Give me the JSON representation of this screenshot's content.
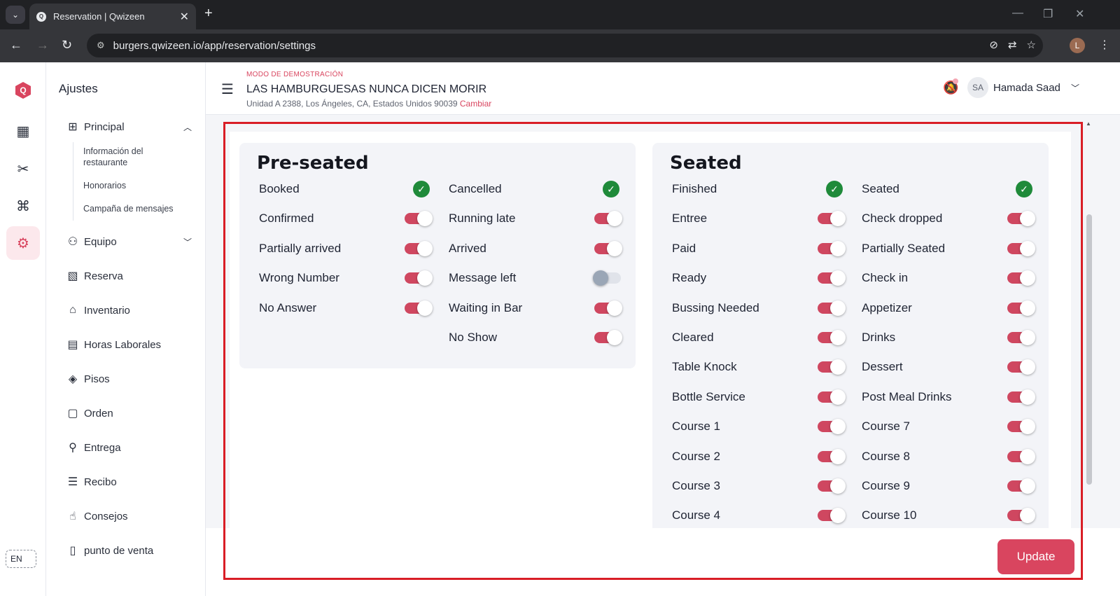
{
  "browser": {
    "tab_title": "Reservation | Qwizeen",
    "url": "burgers.qwizeen.io/app/reservation/settings",
    "profile_initial": "L"
  },
  "rail": {
    "logo_letter": "Q",
    "lang": "EN"
  },
  "sidebar": {
    "title": "Ajustes",
    "principal": "Principal",
    "sub_items": [
      "Información del restaurante",
      "Honorarios",
      "Campaña de mensajes"
    ],
    "equipo": "Equipo",
    "items": [
      "Reserva",
      "Inventario",
      "Horas Laborales",
      "Pisos",
      "Orden",
      "Entrega",
      "Recibo",
      "Consejos",
      "punto de venta"
    ]
  },
  "header": {
    "demo_mode": "MODO DE DEMOSTRACIÓN",
    "restaurant": "LAS HAMBURGUESAS NUNCA DICEN MORIR",
    "address": "Unidad A 2388, Los Ángeles, CA, Estados Unidos 90039",
    "change_link": "Cambiar",
    "avatar_initials": "SA",
    "user_name": "Hamada Saad"
  },
  "preseated": {
    "title": "Pre-seated",
    "col1": [
      {
        "label": "Booked",
        "state": "fixed"
      },
      {
        "label": "Confirmed",
        "state": "on"
      },
      {
        "label": "Partially arrived",
        "state": "on"
      },
      {
        "label": "Wrong Number",
        "state": "on"
      },
      {
        "label": "No Answer",
        "state": "on"
      }
    ],
    "col2": [
      {
        "label": "Cancelled",
        "state": "fixed"
      },
      {
        "label": "Running late",
        "state": "on"
      },
      {
        "label": "Arrived",
        "state": "on"
      },
      {
        "label": "Message left",
        "state": "off"
      },
      {
        "label": "Waiting in Bar",
        "state": "on"
      },
      {
        "label": "No Show",
        "state": "on"
      }
    ]
  },
  "seated": {
    "title": "Seated",
    "col1": [
      {
        "label": "Finished",
        "state": "fixed"
      },
      {
        "label": "Entree",
        "state": "on"
      },
      {
        "label": "Paid",
        "state": "on"
      },
      {
        "label": "Ready",
        "state": "on"
      },
      {
        "label": "Bussing Needed",
        "state": "on"
      },
      {
        "label": "Cleared",
        "state": "on"
      },
      {
        "label": "Table Knock",
        "state": "on"
      },
      {
        "label": "Bottle Service",
        "state": "on"
      },
      {
        "label": "Course 1",
        "state": "on"
      },
      {
        "label": "Course 2",
        "state": "on"
      },
      {
        "label": "Course 3",
        "state": "on"
      },
      {
        "label": "Course 4",
        "state": "on"
      }
    ],
    "col2": [
      {
        "label": "Seated",
        "state": "fixed"
      },
      {
        "label": "Check dropped",
        "state": "on"
      },
      {
        "label": "Partially Seated",
        "state": "on"
      },
      {
        "label": "Check in",
        "state": "on"
      },
      {
        "label": "Appetizer",
        "state": "on"
      },
      {
        "label": "Drinks",
        "state": "on"
      },
      {
        "label": "Dessert",
        "state": "on"
      },
      {
        "label": "Post Meal Drinks",
        "state": "on"
      },
      {
        "label": "Course 7",
        "state": "on"
      },
      {
        "label": "Course 8",
        "state": "on"
      },
      {
        "label": "Course 9",
        "state": "on"
      },
      {
        "label": "Course 10",
        "state": "on"
      }
    ]
  },
  "actions": {
    "update": "Update"
  },
  "colors": {
    "accent": "#d9455f",
    "check": "#1f8a3a",
    "highlight": "#d91e26"
  }
}
